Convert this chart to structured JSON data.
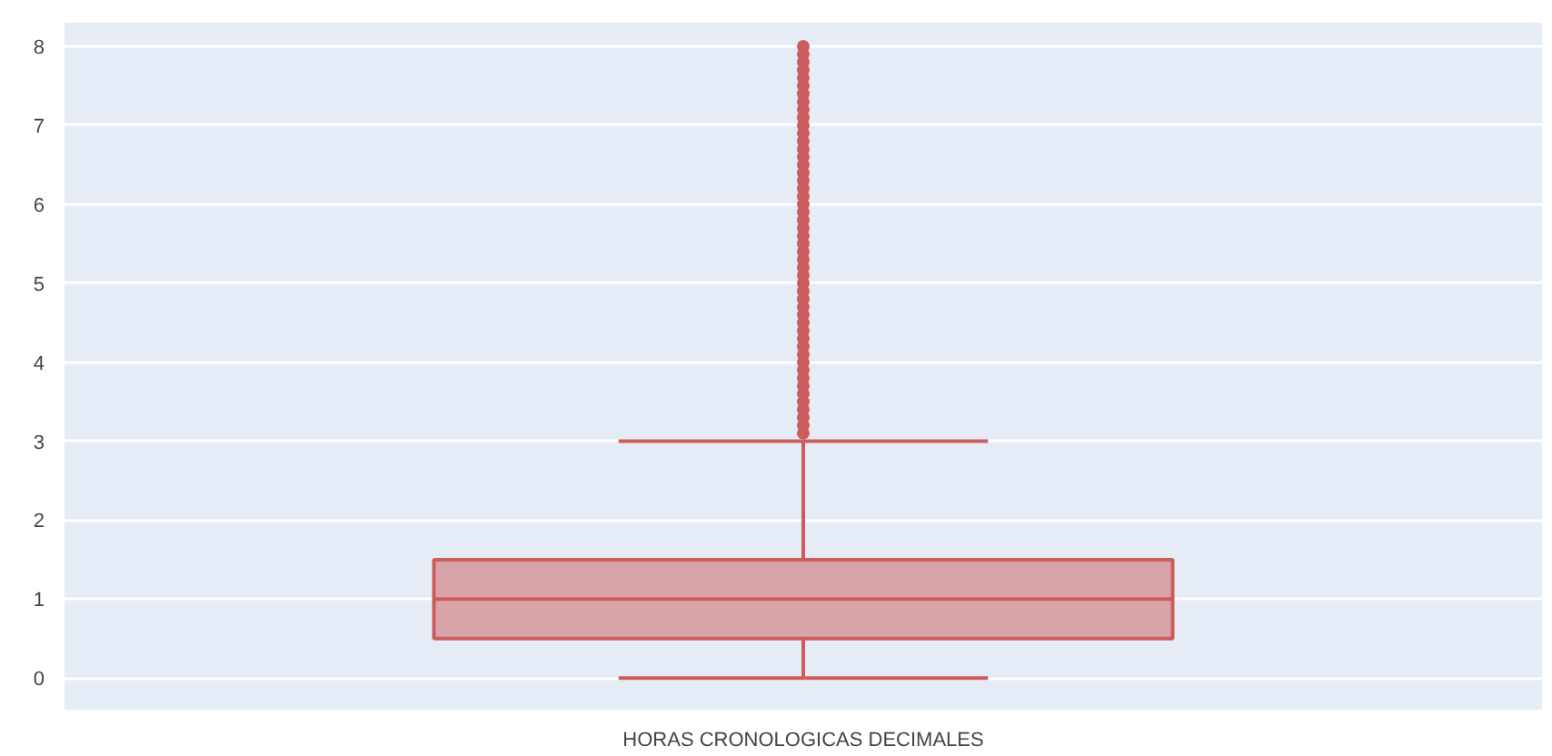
{
  "chart_data": {
    "type": "box",
    "categories": [
      "HORAS CRONOLOGICAS DECIMALES"
    ],
    "series": [
      {
        "color": "#cd5c5c",
        "boxes": [
          {
            "low": 0,
            "q1": 0.5,
            "median": 1,
            "q3": 1.5,
            "high": 3,
            "outliers": [
              3.1,
              3.2,
              3.3,
              3.4,
              3.5,
              3.6,
              3.7,
              3.8,
              3.9,
              4.0,
              4.1,
              4.2,
              4.3,
              4.4,
              4.5,
              4.6,
              4.7,
              4.8,
              4.9,
              5.0,
              5.1,
              5.2,
              5.3,
              5.4,
              5.5,
              5.6,
              5.7,
              5.8,
              5.9,
              6.0,
              6.1,
              6.2,
              6.3,
              6.4,
              6.5,
              6.6,
              6.7,
              6.8,
              6.9,
              7.0,
              7.1,
              7.2,
              7.3,
              7.4,
              7.5,
              7.6,
              7.7,
              7.8,
              7.9,
              8.0
            ]
          }
        ]
      }
    ],
    "ylim": [
      -0.4,
      8.3
    ],
    "yticks": [
      0,
      1,
      2,
      3,
      4,
      5,
      6,
      7,
      8
    ],
    "grid": "y"
  }
}
